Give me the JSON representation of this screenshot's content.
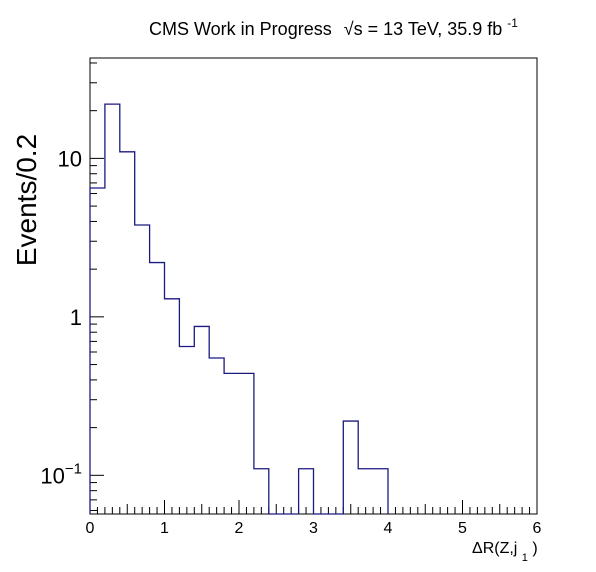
{
  "chart_data": {
    "type": "histogram",
    "title": "CMS Work in Progress",
    "header": {
      "text": "CMS Work in Progress",
      "sqrt_s_symbol": "√s",
      "energy": " = 13 TeV, 35.9 fb",
      "lumi_exp": "-1"
    },
    "xlabel": {
      "base": "ΔR(Z,j",
      "sub": "1",
      "close": ")"
    },
    "ylabel": "Events/0.2",
    "xlim": [
      0,
      6
    ],
    "ylim": [
      0.057,
      43
    ],
    "log_y": true,
    "line_color": "#1a1a80",
    "bin_width": 0.2,
    "bin_edges": [
      0.0,
      0.2,
      0.4,
      0.6,
      0.8,
      1.0,
      1.2,
      1.4,
      1.6,
      1.8,
      2.0,
      2.2,
      2.4,
      2.6,
      2.8,
      3.0,
      3.2,
      3.4,
      3.6,
      3.8,
      4.0
    ],
    "values": [
      6.5,
      22.0,
      11.0,
      3.8,
      2.2,
      1.3,
      0.65,
      0.87,
      0.55,
      0.44,
      0.44,
      0.11,
      0.0,
      0.0,
      0.11,
      0.0,
      0.0,
      0.22,
      0.11,
      0.11
    ],
    "x_ticks": [
      {
        "value": 0,
        "label": "0"
      },
      {
        "value": 1,
        "label": "1"
      },
      {
        "value": 2,
        "label": "2"
      },
      {
        "value": 3,
        "label": "3"
      },
      {
        "value": 4,
        "label": "4"
      },
      {
        "value": 5,
        "label": "5"
      },
      {
        "value": 6,
        "label": "6"
      }
    ],
    "y_ticks": [
      {
        "value": 0.1,
        "label": "10",
        "exp": "−1"
      },
      {
        "value": 1,
        "label": "1",
        "exp": ""
      },
      {
        "value": 10,
        "label": "10",
        "exp": ""
      }
    ]
  }
}
